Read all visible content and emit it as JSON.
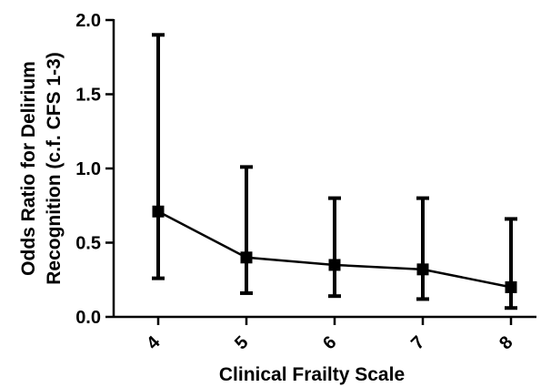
{
  "chart_data": {
    "type": "line",
    "title": "",
    "xlabel": "Clinical Frailty Scale",
    "ylabel_lines": [
      "Odds Ratio for Delirium",
      "Recognition (c.f. CFS 1-3)"
    ],
    "categories": [
      "4",
      "5",
      "6",
      "7",
      "8"
    ],
    "series": [
      {
        "values": [
          0.71,
          0.4,
          0.35,
          0.32,
          0.2
        ],
        "lower": [
          0.26,
          0.16,
          0.14,
          0.12,
          0.06
        ],
        "upper": [
          1.9,
          1.01,
          0.8,
          0.8,
          0.66
        ]
      }
    ],
    "ylim": [
      0.0,
      2.0
    ],
    "yticks": [
      "0.0",
      "0.5",
      "1.0",
      "1.5",
      "2.0"
    ],
    "ytick_values": [
      0.0,
      0.5,
      1.0,
      1.5,
      2.0
    ],
    "grid": false,
    "marker": "square",
    "color": "#000000"
  }
}
